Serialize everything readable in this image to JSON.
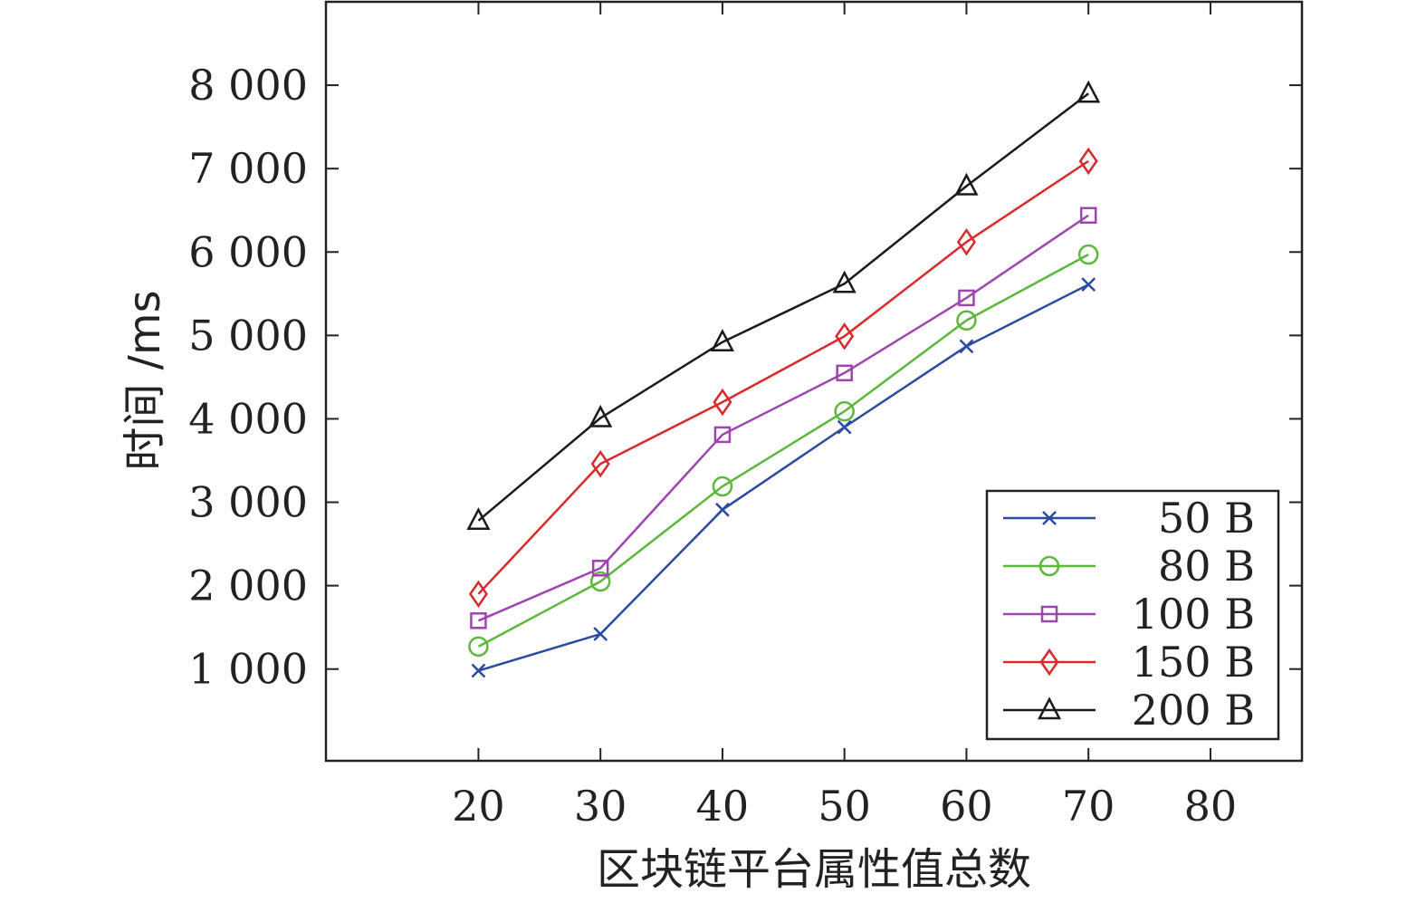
{
  "chart_data": {
    "type": "line",
    "title": "",
    "xlabel": "区块链平台属性值总数",
    "ylabel": "时间 /ms",
    "xlim": [
      7.5,
      87.5
    ],
    "ylim": [
      -100,
      9000
    ],
    "x_ticks": [
      20,
      30,
      40,
      50,
      60,
      70,
      80
    ],
    "y_ticks": [
      1000,
      2000,
      3000,
      4000,
      5000,
      6000,
      7000,
      8000
    ],
    "y_tick_labels": [
      "1 000",
      "2 000",
      "3 000",
      "4 000",
      "5 000",
      "6 000",
      "7 000",
      "8 000"
    ],
    "grid": false,
    "legend_position": "bottom-right",
    "x": [
      20,
      30,
      40,
      50,
      60,
      70
    ],
    "series": [
      {
        "name": "50 B",
        "color": "#2b4ba0",
        "marker": "x",
        "values": [
          980,
          1420,
          2910,
          3900,
          4870,
          5610
        ]
      },
      {
        "name": "80 B",
        "color": "#5cb83a",
        "marker": "circle",
        "values": [
          1270,
          2050,
          3190,
          4090,
          5180,
          5970
        ]
      },
      {
        "name": "100 B",
        "color": "#9e45b0",
        "marker": "square",
        "values": [
          1580,
          2210,
          3810,
          4550,
          5450,
          6440
        ]
      },
      {
        "name": "150 B",
        "color": "#d92a2a",
        "marker": "diamond",
        "values": [
          1900,
          3460,
          4200,
          4990,
          6120,
          7090
        ]
      },
      {
        "name": "200 B",
        "color": "#1a1a1a",
        "marker": "triangle",
        "values": [
          2780,
          4010,
          4920,
          5620,
          6790,
          7900
        ]
      }
    ]
  }
}
